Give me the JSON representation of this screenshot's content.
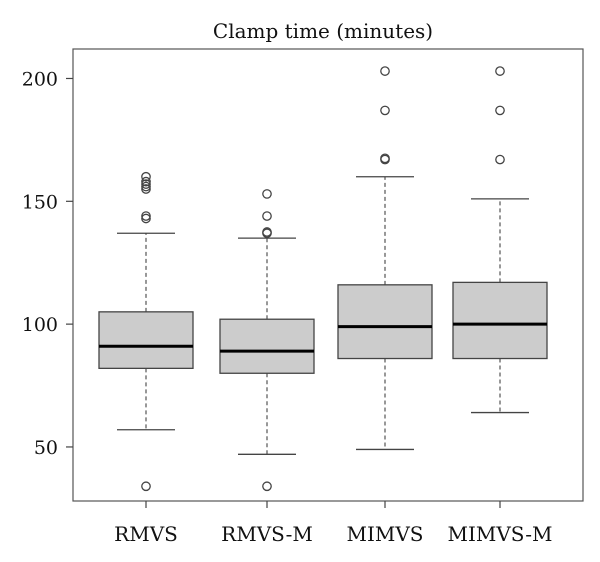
{
  "chart_data": {
    "type": "boxplot",
    "title": "Clamp time (minutes)",
    "xlabel": "",
    "ylabel": "",
    "ylim": [
      28,
      212
    ],
    "yticks": [
      50,
      100,
      150,
      200
    ],
    "grid": false,
    "categories": [
      "RMVS",
      "RMVS-M",
      "MIMVS",
      "MIMVS-M"
    ],
    "series": [
      {
        "whisker_low": 57,
        "q1": 82,
        "median": 91,
        "q3": 105,
        "whisker_high": 137,
        "outliers": [
          34,
          143,
          144,
          155,
          156,
          157,
          158,
          160
        ]
      },
      {
        "whisker_low": 47,
        "q1": 80,
        "median": 89,
        "q3": 102,
        "whisker_high": 135,
        "outliers": [
          34,
          137,
          137.5,
          144,
          153
        ]
      },
      {
        "whisker_low": 49,
        "q1": 86,
        "median": 99,
        "q3": 116,
        "whisker_high": 160,
        "outliers": [
          167,
          167.5,
          187,
          203
        ]
      },
      {
        "whisker_low": 64,
        "q1": 86,
        "median": 100,
        "q3": 117,
        "whisker_high": 151,
        "outliers": [
          167,
          187,
          203
        ]
      }
    ]
  }
}
